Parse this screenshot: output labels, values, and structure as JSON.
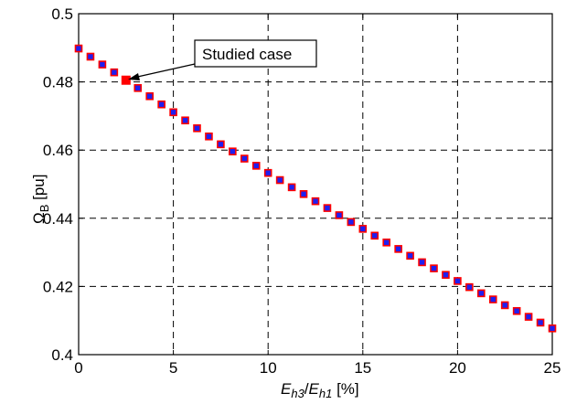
{
  "chart_data": {
    "type": "scatter",
    "title": "",
    "xlabel": {
      "base": "E",
      "sub1": "h3",
      "slash": "/",
      "base2": "E",
      "sub2": "h1",
      "unit": " [%]"
    },
    "ylabel": {
      "base": "Ω",
      "sub": "B",
      "unit": " [pu]"
    },
    "xlim": [
      0,
      25
    ],
    "ylim": [
      0.4,
      0.5
    ],
    "xticks": [
      0,
      5,
      10,
      15,
      20,
      25
    ],
    "yticks": [
      0.4,
      0.42,
      0.44,
      0.46,
      0.48,
      0.5
    ],
    "xtick_labels": [
      "0",
      "5",
      "10",
      "15",
      "20",
      "25"
    ],
    "ytick_labels": [
      "0.4",
      "0.42",
      "0.44",
      "0.46",
      "0.48",
      "0.5"
    ],
    "grid": true,
    "marker_face": "#1f1ff0",
    "marker_edge": "#ff0000",
    "highlight_color": "#ff0000",
    "series": [
      {
        "x": [
          0,
          0.625,
          1.25,
          1.875,
          2.5,
          3.125,
          3.75,
          4.375,
          5,
          5.625,
          6.25,
          6.875,
          7.5,
          8.125,
          8.75,
          9.375,
          10,
          10.625,
          11.25,
          11.875,
          12.5,
          13.125,
          13.75,
          14.375,
          15,
          15.625,
          16.25,
          16.875,
          17.5,
          18.125,
          18.75,
          19.375,
          20,
          20.625,
          21.25,
          21.875,
          22.5,
          23.125,
          23.75,
          24.375,
          25
        ],
        "y": [
          0.4898,
          0.4874,
          0.4851,
          0.4828,
          0.4805,
          0.4782,
          0.4758,
          0.4734,
          0.4711,
          0.4687,
          0.4664,
          0.464,
          0.4617,
          0.4596,
          0.4575,
          0.4554,
          0.4533,
          0.4512,
          0.4491,
          0.4471,
          0.445,
          0.443,
          0.4409,
          0.4389,
          0.4369,
          0.4349,
          0.4329,
          0.431,
          0.429,
          0.4271,
          0.4253,
          0.4234,
          0.4216,
          0.4198,
          0.418,
          0.4162,
          0.4145,
          0.4128,
          0.4111,
          0.4094,
          0.4077
        ]
      }
    ],
    "highlight": {
      "x": 2.5,
      "y": 0.4805,
      "label": "Studied case"
    }
  }
}
